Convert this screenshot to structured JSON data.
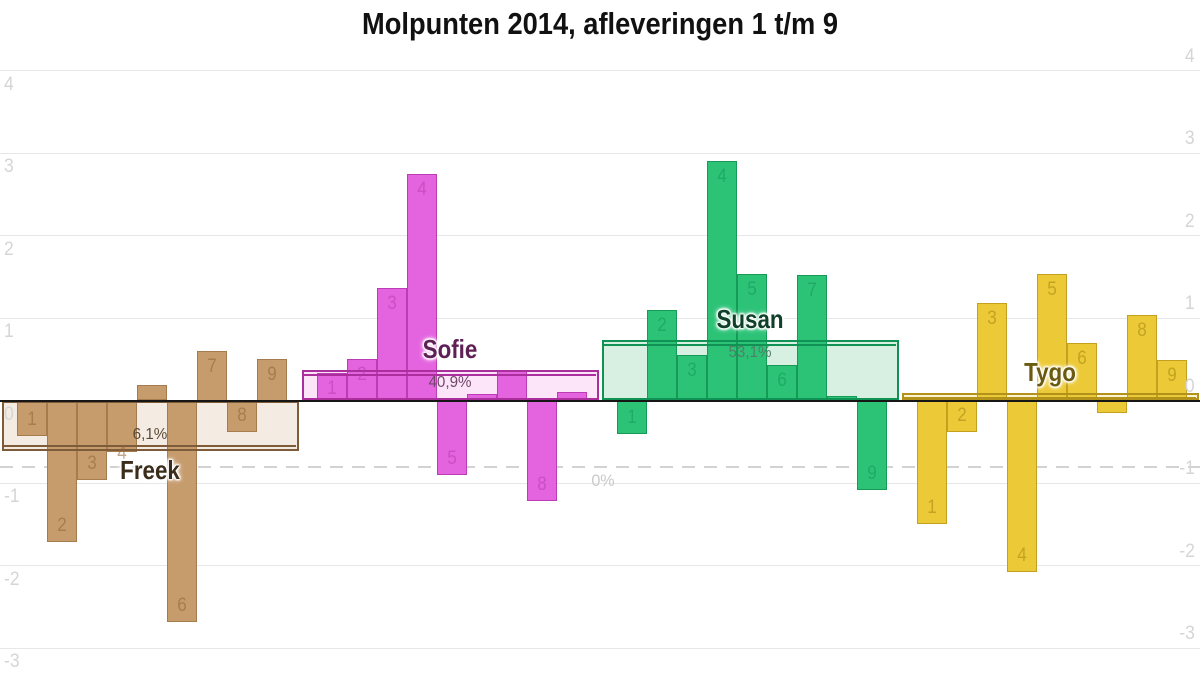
{
  "title": "Molpunten 2014, afleveringen 1 t/m 9",
  "y_axis": {
    "tick_values": [
      4,
      3,
      2,
      1,
      0,
      -1,
      -2,
      -3
    ]
  },
  "annotations": {
    "zero_percent_label": "0%",
    "zero_percent_line_value": -0.81
  },
  "chart_data": {
    "type": "bar",
    "title": "Molpunten 2014, afleveringen 1 t/m 9",
    "categories": [
      1,
      2,
      3,
      4,
      5,
      6,
      7,
      8,
      9
    ],
    "ylim": [
      -3.6,
      4.1
    ],
    "grid": true,
    "legend": false,
    "series": [
      {
        "name": "Freek",
        "pct_label": "6,1%",
        "mean": -0.61,
        "values": [
          -0.43,
          -1.72,
          -0.96,
          -0.63,
          0.19,
          -2.68,
          0.6,
          -0.38,
          0.5
        ],
        "labels_shown": [
          true,
          true,
          true,
          true,
          false,
          true,
          true,
          true,
          true
        ],
        "outside_labels": [
          4
        ],
        "colors": {
          "bar": "#c69c6d",
          "bar_border": "#a57c4e",
          "bar_label": "rgba(148,104,58,0.6)",
          "band_fill": "#f4ebe2",
          "band_line": "#7e5b39",
          "name_text": "#3b2d1c",
          "pct_text": "#5c4936"
        }
      },
      {
        "name": "Sofie",
        "pct_label": "40,9%",
        "mean": 0.37,
        "values": [
          0.33,
          0.5,
          1.36,
          2.75,
          -0.9,
          0.08,
          0.37,
          -1.22,
          0.1
        ],
        "labels_shown": [
          true,
          true,
          true,
          true,
          true,
          false,
          false,
          true,
          false
        ],
        "outside_labels": [],
        "colors": {
          "bar": "#e464df",
          "bar_border": "#bc3cb6",
          "bar_label": "rgba(178,56,170,0.5)",
          "band_fill": "#fce5f9",
          "band_line": "#aa2e9c",
          "name_text": "#5e2156",
          "pct_text": "#71486a"
        }
      },
      {
        "name": "Susan",
        "pct_label": "53,1%",
        "mean": 0.73,
        "values": [
          -0.4,
          1.1,
          0.55,
          2.9,
          1.53,
          0.43,
          1.52,
          0.05,
          -1.08
        ],
        "labels_shown": [
          true,
          true,
          true,
          true,
          true,
          true,
          true,
          false,
          true
        ],
        "outside_labels": [],
        "colors": {
          "bar": "#2cc377",
          "bar_border": "#169a57",
          "bar_label": "rgba(18,146,84,0.5)",
          "band_fill": "#d7f0e2",
          "band_line": "#109254",
          "name_text": "#11402a",
          "pct_text": "#4d8168"
        }
      },
      {
        "name": "Tygo",
        "pct_label": "",
        "mean": 0.09,
        "values": [
          -1.5,
          -0.38,
          1.18,
          -2.08,
          1.53,
          0.7,
          -0.15,
          1.04,
          0.49
        ],
        "labels_shown": [
          true,
          true,
          true,
          true,
          true,
          true,
          false,
          true,
          true
        ],
        "outside_labels": [],
        "colors": {
          "bar": "#ecc936",
          "bar_border": "#c3a11f",
          "bar_label": "rgba(168,138,24,0.6)",
          "band_fill": "#fbf3cd",
          "band_line": "#b2921a",
          "name_text": "#6a5b10",
          "pct_text": "#8a7a30"
        }
      }
    ]
  }
}
